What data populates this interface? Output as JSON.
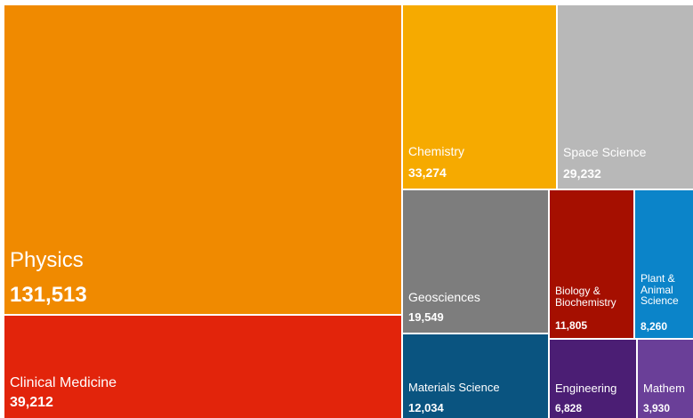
{
  "chart_data": {
    "type": "treemap",
    "title": "",
    "items": [
      {
        "name": "Physics",
        "value": 131513,
        "value_label": "131,513",
        "color": "#f08a00"
      },
      {
        "name": "Clinical Medicine",
        "value": 39212,
        "value_label": "39,212",
        "color": "#e2240b"
      },
      {
        "name": "Chemistry",
        "value": 33274,
        "value_label": "33,274",
        "color": "#f6aa00"
      },
      {
        "name": "Space Science",
        "value": 29232,
        "value_label": "29,232",
        "color": "#b8b8b8"
      },
      {
        "name": "Geosciences",
        "value": 19549,
        "value_label": "19,549",
        "color": "#7d7d7d"
      },
      {
        "name": "Biology & Biochemistry",
        "value": 11805,
        "value_label": "11,805",
        "color": "#a50f00"
      },
      {
        "name": "Plant & Animal Science",
        "value": 8260,
        "value_label": "8,260",
        "color": "#0b84c9"
      },
      {
        "name": "Materials Science",
        "value": 12034,
        "value_label": "12,034",
        "color": "#0a5480"
      },
      {
        "name": "Engineering",
        "value": 6828,
        "value_label": "6,828",
        "color": "#4b1e74"
      },
      {
        "name": "Mathem",
        "value": 3930,
        "value_label": "3,930",
        "color": "#6a3f98"
      }
    ]
  }
}
